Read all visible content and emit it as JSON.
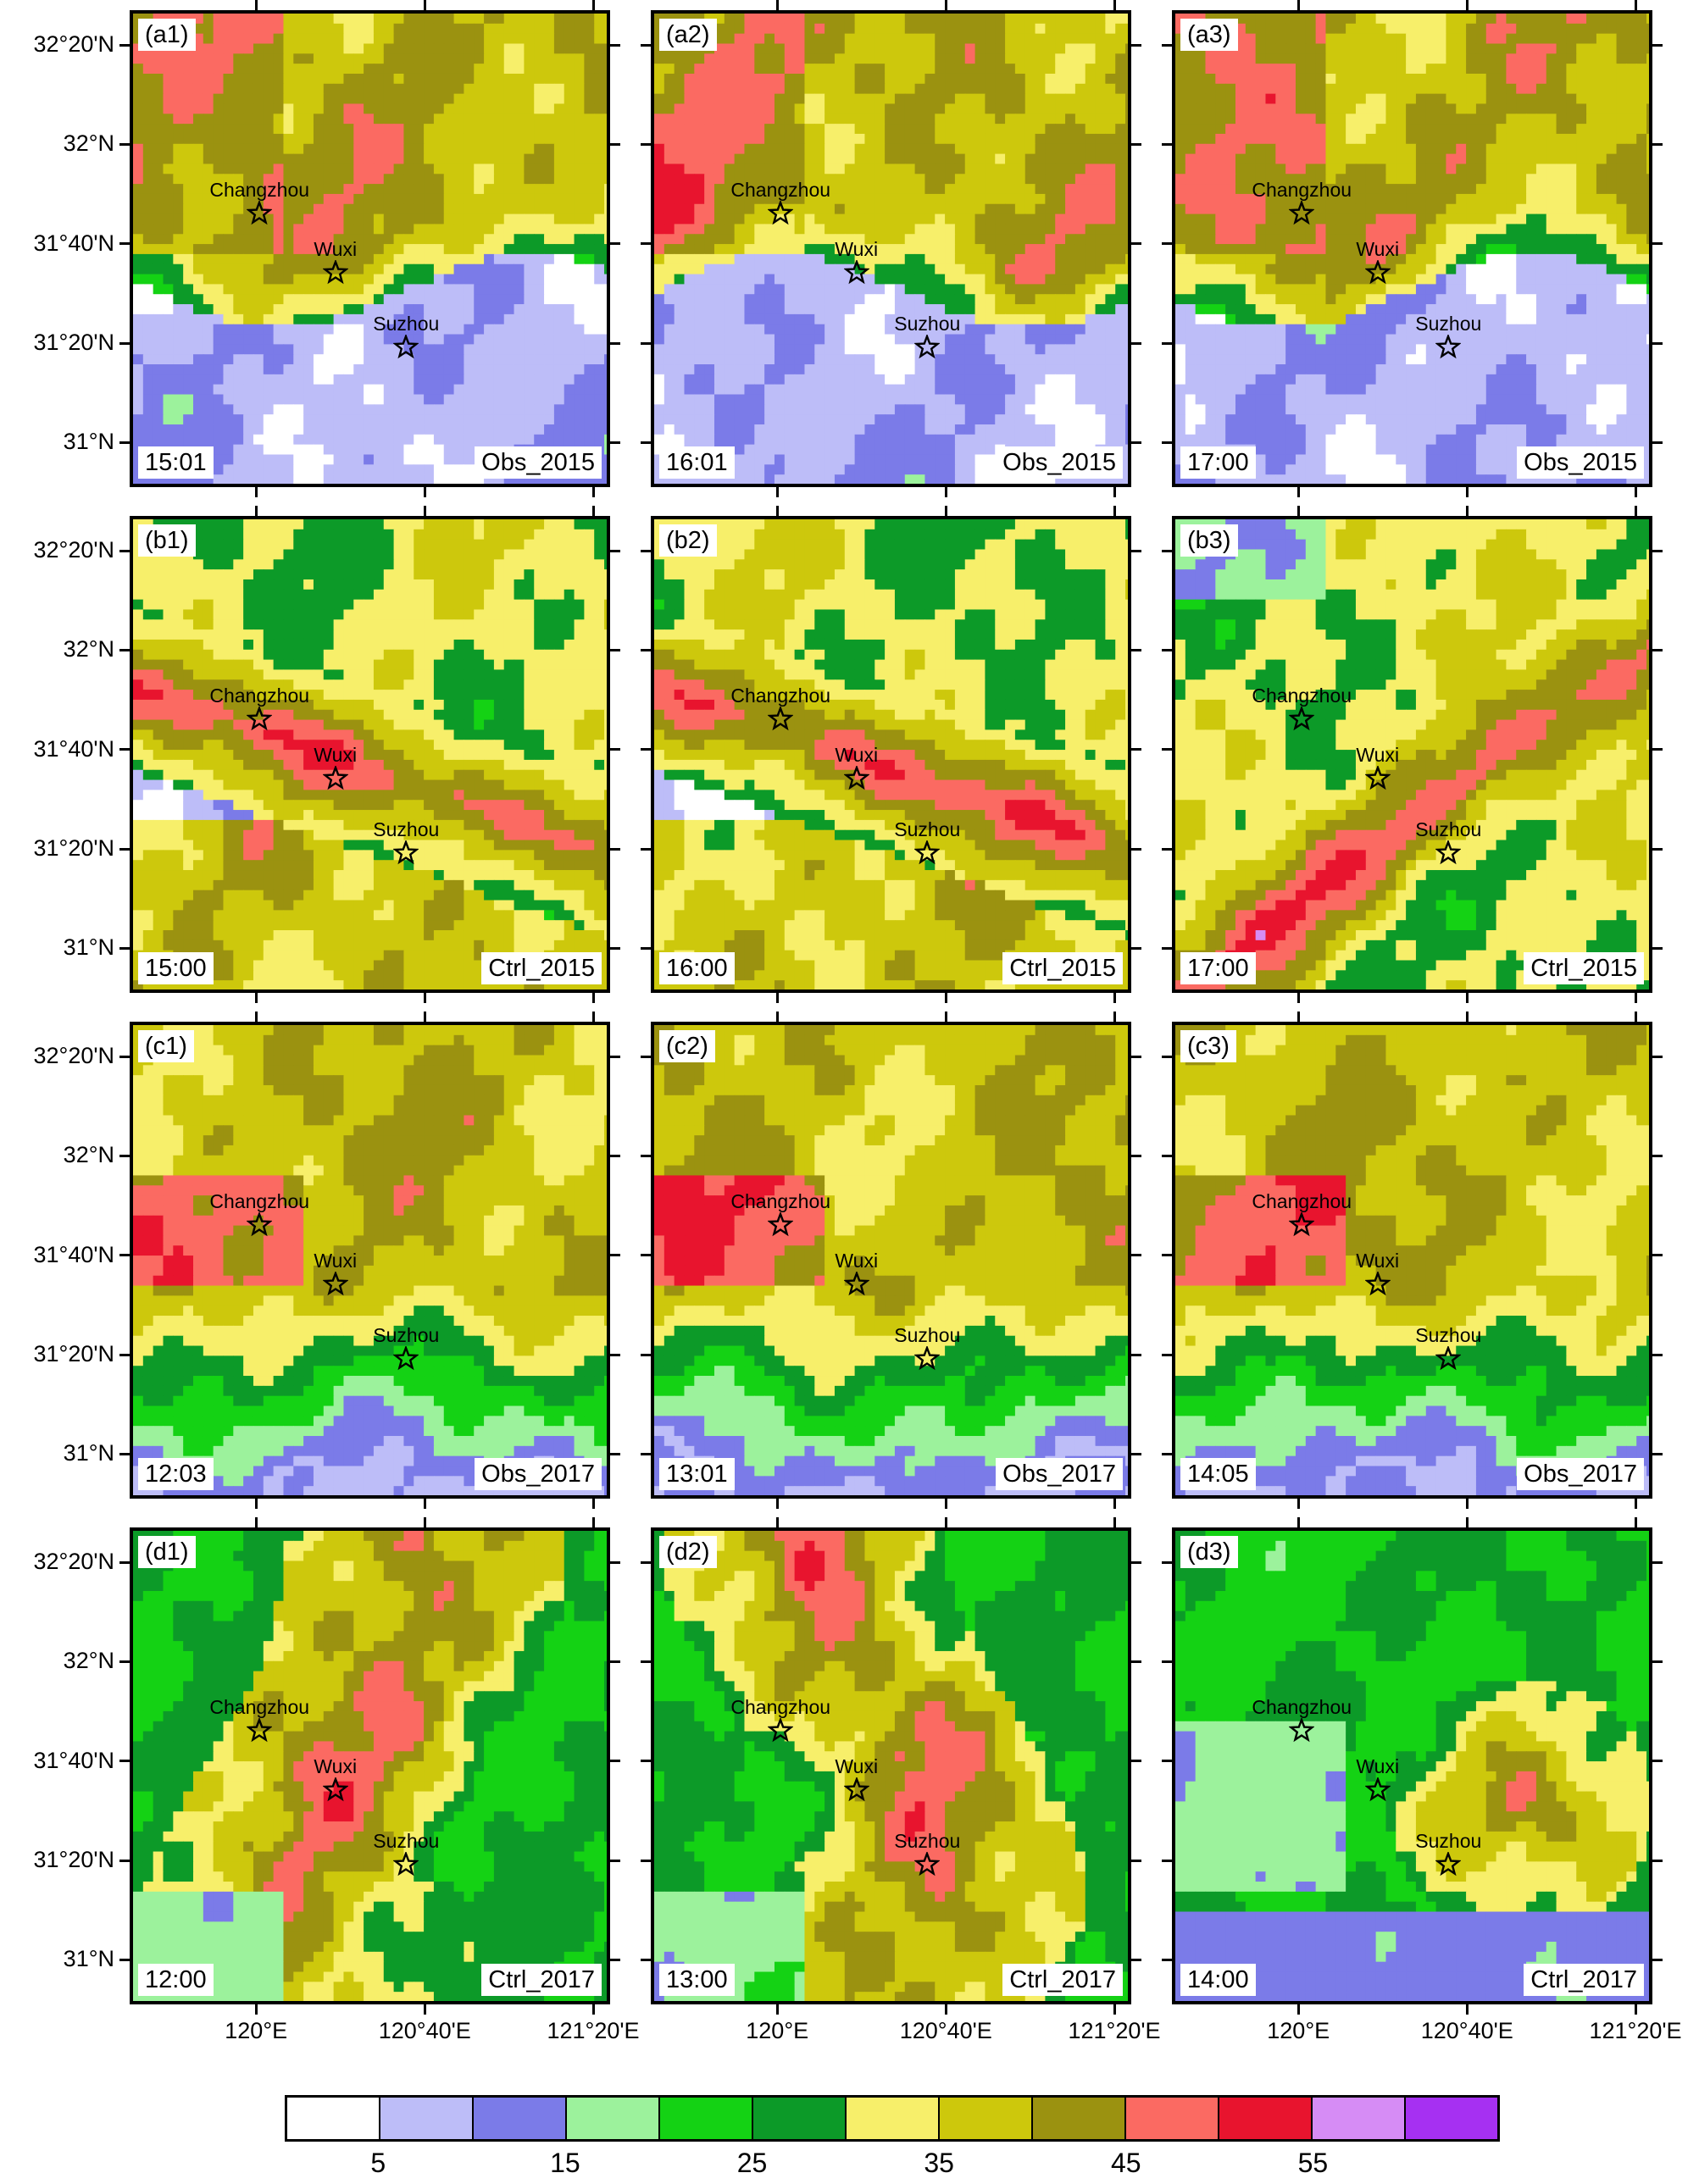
{
  "map": {
    "panels": [
      {
        "id": "(a1)",
        "time": "15:01",
        "source": "Obs_2015",
        "pattern": "obs2015",
        "seed": 11
      },
      {
        "id": "(a2)",
        "time": "16:01",
        "source": "Obs_2015",
        "pattern": "obs2015",
        "seed": 12
      },
      {
        "id": "(a3)",
        "time": "17:00",
        "source": "Obs_2015",
        "pattern": "obs2015",
        "seed": 13
      },
      {
        "id": "(b1)",
        "time": "15:00",
        "source": "Ctrl_2015",
        "pattern": "ctrl2015",
        "seed": 21
      },
      {
        "id": "(b2)",
        "time": "16:00",
        "source": "Ctrl_2015",
        "pattern": "ctrl2015",
        "seed": 22
      },
      {
        "id": "(b3)",
        "time": "17:00",
        "source": "Ctrl_2015",
        "pattern": "ctrl2015b",
        "seed": 23
      },
      {
        "id": "(c1)",
        "time": "12:03",
        "source": "Obs_2017",
        "pattern": "obs2017",
        "seed": 31
      },
      {
        "id": "(c2)",
        "time": "13:01",
        "source": "Obs_2017",
        "pattern": "obs2017",
        "seed": 32
      },
      {
        "id": "(c3)",
        "time": "14:05",
        "source": "Obs_2017",
        "pattern": "obs2017",
        "seed": 33
      },
      {
        "id": "(d1)",
        "time": "12:00",
        "source": "Ctrl_2017",
        "pattern": "ctrl2017",
        "seed": 41
      },
      {
        "id": "(d2)",
        "time": "13:00",
        "source": "Ctrl_2017",
        "pattern": "ctrl2017",
        "seed": 42
      },
      {
        "id": "(d3)",
        "time": "14:00",
        "source": "Ctrl_2017",
        "pattern": "ctrl2017b",
        "seed": 43
      }
    ],
    "cities": [
      {
        "name": "Changzhou",
        "lon": 120.0,
        "lat": 31.78
      },
      {
        "name": "Wuxi",
        "lon": 120.3,
        "lat": 31.58
      },
      {
        "name": "Suzhou",
        "lon": 120.58,
        "lat": 31.33
      }
    ],
    "lat_ticks": [
      {
        "label": "32°20'N",
        "value": 32.333
      },
      {
        "label": "32°N",
        "value": 32.0
      },
      {
        "label": "31°40'N",
        "value": 31.667
      },
      {
        "label": "31°20'N",
        "value": 31.333
      },
      {
        "label": "31°N",
        "value": 31.0
      }
    ],
    "lon_ticks": [
      {
        "label": "120°E",
        "value": 120.0
      },
      {
        "label": "120°40'E",
        "value": 120.667
      },
      {
        "label": "121°20'E",
        "value": 121.333
      }
    ],
    "extent": {
      "lon_min": 119.5,
      "lon_max": 121.4,
      "lat_min": 30.85,
      "lat_max": 32.45
    }
  },
  "colorbar": {
    "colors": [
      "#ffffff",
      "#bdbdf8",
      "#7b7be8",
      "#9cf29c",
      "#14d214",
      "#0c9a28",
      "#f7ef6a",
      "#cdc80c",
      "#9b9210",
      "#fb6a62",
      "#e8142e",
      "#d68cf5",
      "#a630f2"
    ],
    "labels": [
      {
        "text": "5",
        "index": 1
      },
      {
        "text": "15",
        "index": 3
      },
      {
        "text": "25",
        "index": 5
      },
      {
        "text": "35",
        "index": 7
      },
      {
        "text": "45",
        "index": 9
      },
      {
        "text": "55",
        "index": 11
      }
    ]
  }
}
